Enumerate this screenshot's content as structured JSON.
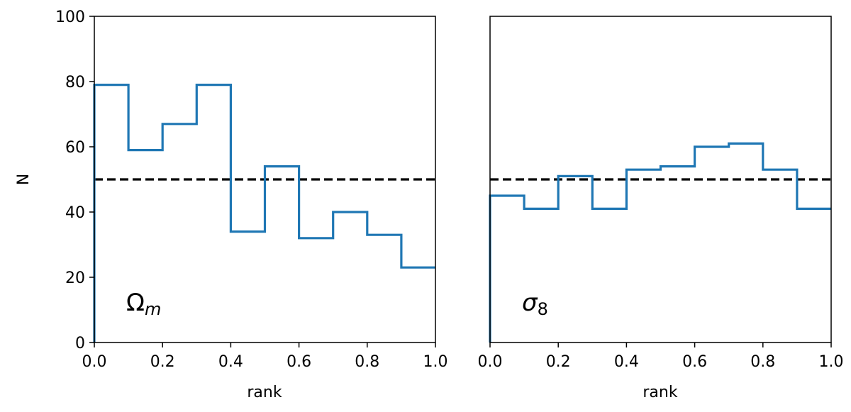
{
  "chart_data": [
    {
      "type": "histogram",
      "panel_label": {
        "main": "Ω",
        "sub": "m"
      },
      "xlabel": "rank",
      "ylabel": "N",
      "xlim": [
        0.0,
        1.0
      ],
      "ylim": [
        0,
        100
      ],
      "xticks": [
        "0.0",
        "0.2",
        "0.4",
        "0.6",
        "0.8",
        "1.0"
      ],
      "yticks": [
        "0",
        "20",
        "40",
        "60",
        "80",
        "100"
      ],
      "bin_edges": [
        0.0,
        0.1,
        0.2,
        0.3,
        0.4,
        0.5,
        0.6,
        0.7,
        0.8,
        0.9,
        1.0
      ],
      "counts": [
        79,
        59,
        67,
        79,
        34,
        54,
        32,
        40,
        33,
        23
      ],
      "reference_line": 50,
      "line_color": "#1f77b4",
      "reference_color": "#000000"
    },
    {
      "type": "histogram",
      "panel_label": {
        "main": "σ",
        "sub": "8"
      },
      "xlabel": "rank",
      "ylabel": "",
      "xlim": [
        0.0,
        1.0
      ],
      "ylim": [
        0,
        100
      ],
      "xticks": [
        "0.0",
        "0.2",
        "0.4",
        "0.6",
        "0.8",
        "1.0"
      ],
      "yticks": [],
      "bin_edges": [
        0.0,
        0.1,
        0.2,
        0.3,
        0.4,
        0.5,
        0.6,
        0.7,
        0.8,
        0.9,
        1.0
      ],
      "counts": [
        45,
        41,
        51,
        41,
        53,
        54,
        60,
        61,
        53,
        41
      ],
      "reference_line": 50,
      "line_color": "#1f77b4",
      "reference_color": "#000000"
    }
  ]
}
